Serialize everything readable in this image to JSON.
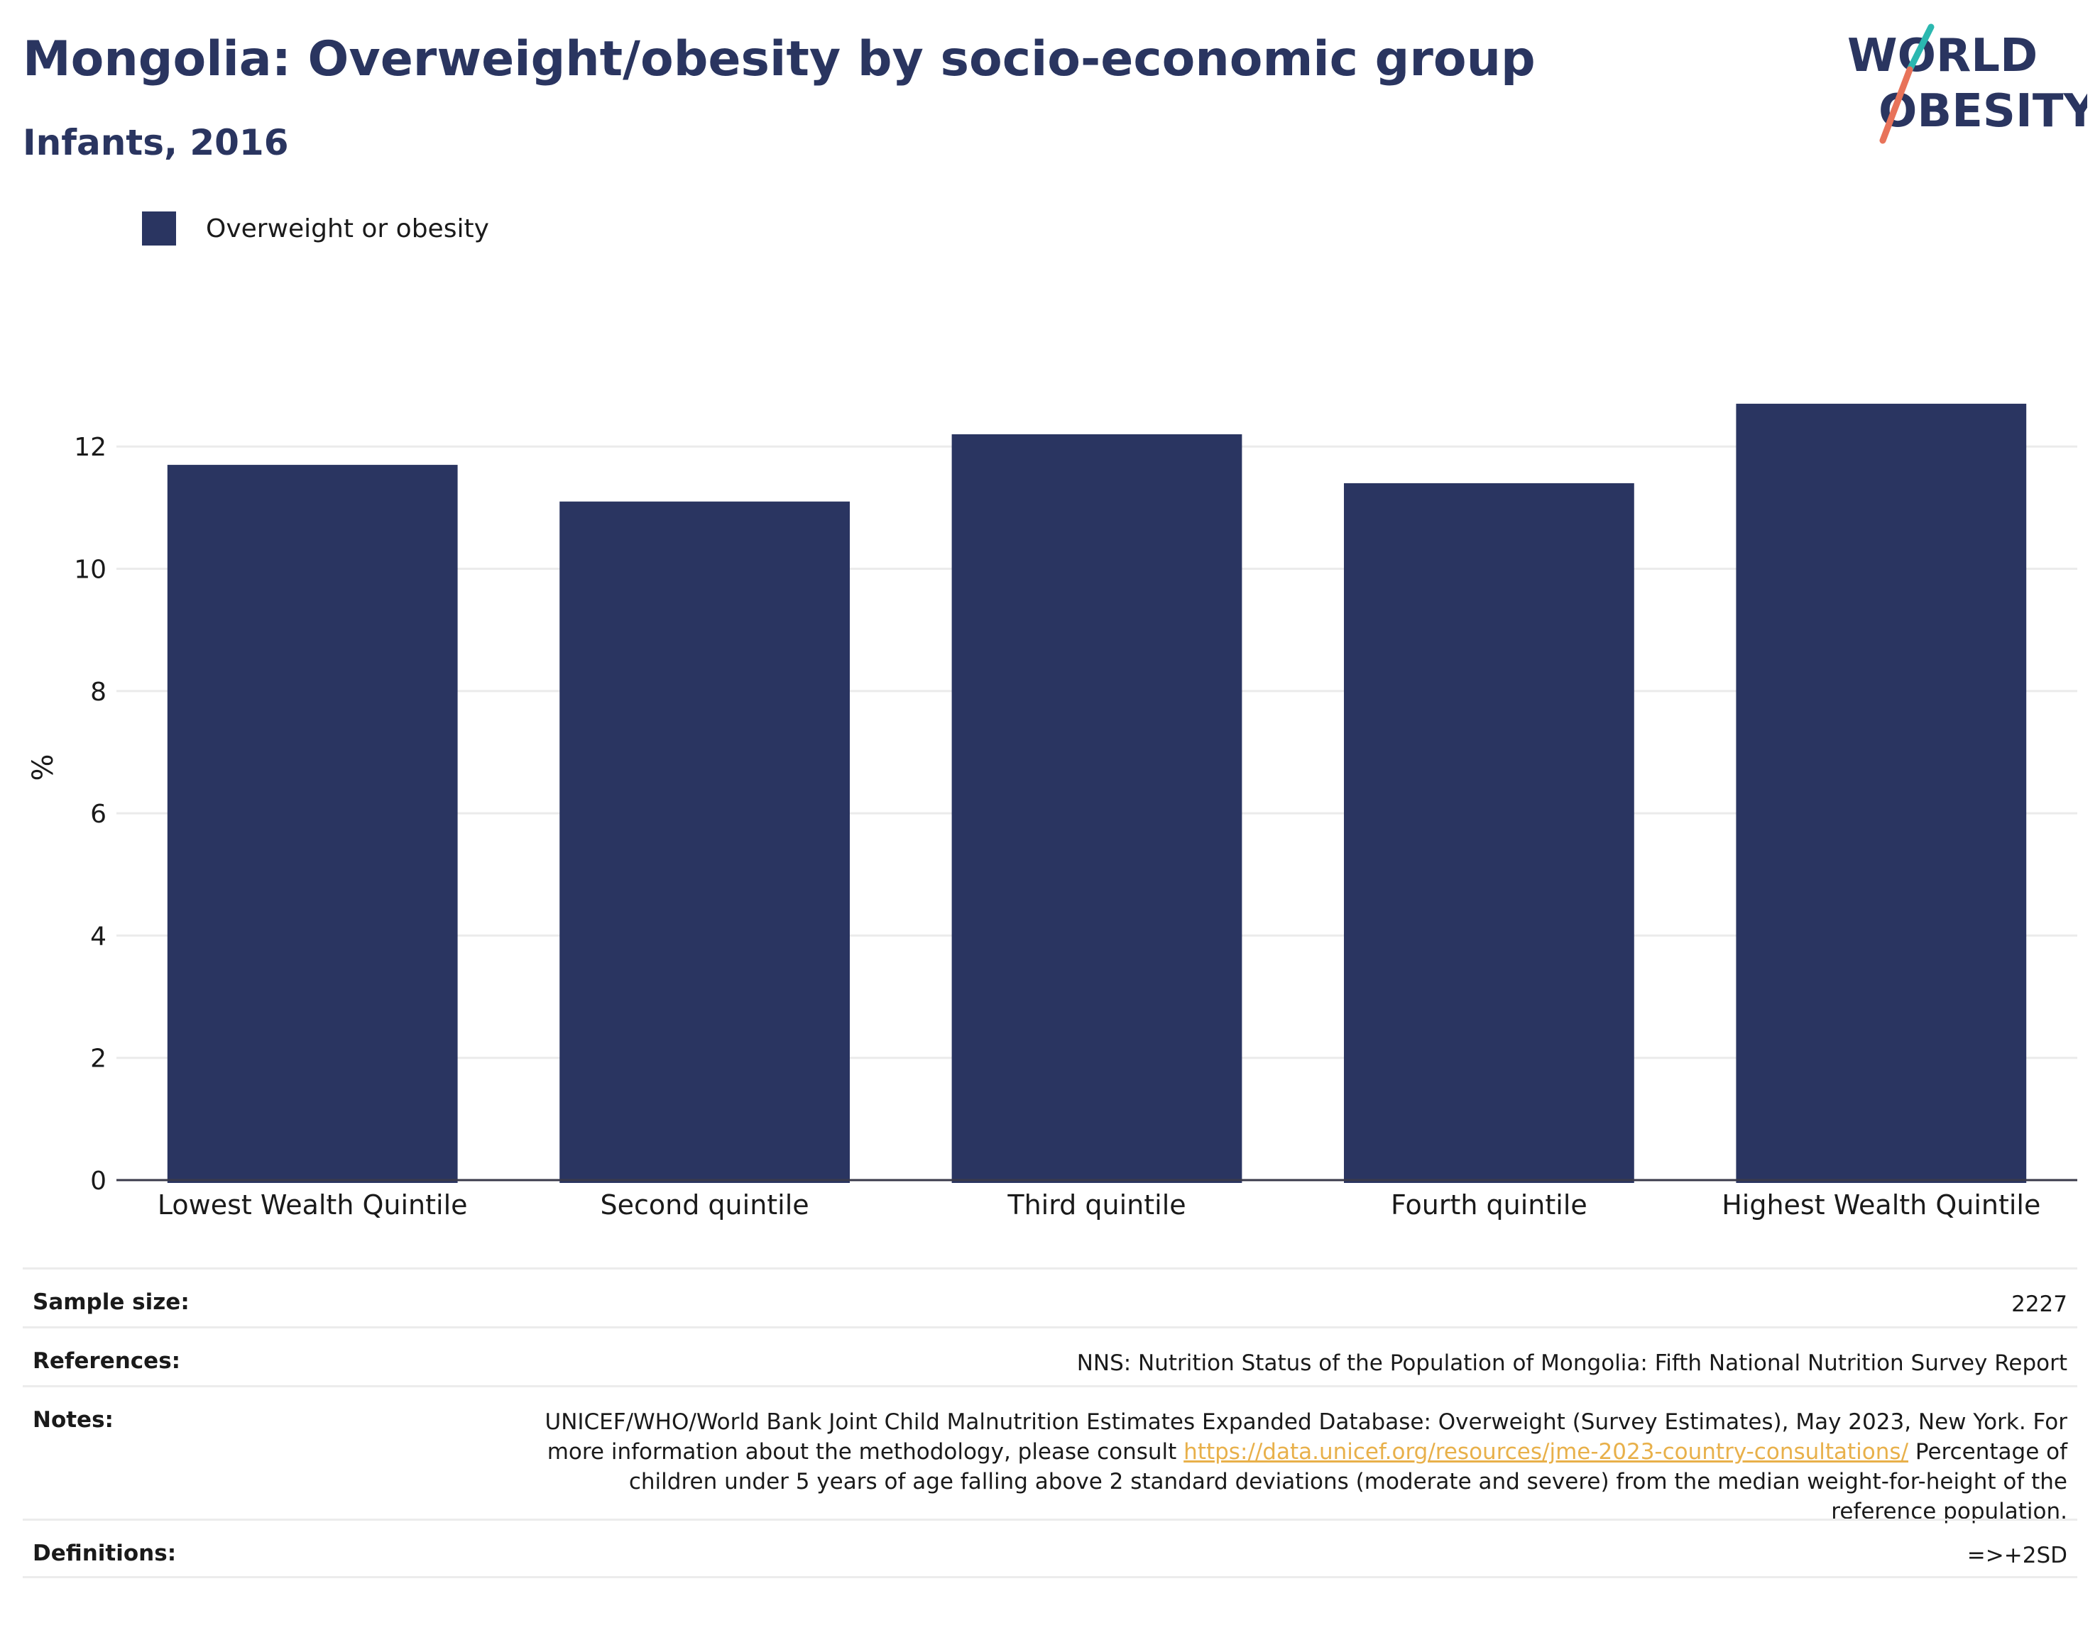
{
  "title": "Mongolia: Overweight/obesity by socio-economic group",
  "subtitle": "Infants, 2016",
  "logo": {
    "line1": "WORLD",
    "line2": "OBESITY",
    "accent_colors": [
      "#2bb8b0",
      "#e8735a"
    ]
  },
  "legend": {
    "label": "Overweight or obesity",
    "color": "#2a3561"
  },
  "chart_data": {
    "type": "bar",
    "categories": [
      "Lowest Wealth Quintile",
      "Second quintile",
      "Third quintile",
      "Fourth quintile",
      "Highest Wealth Quintile"
    ],
    "series": [
      {
        "name": "Overweight or obesity",
        "values": [
          11.7,
          11.1,
          12.2,
          11.4,
          12.7
        ],
        "color": "#2a3561"
      }
    ],
    "xlabel": "",
    "ylabel": "%",
    "ylim": [
      0,
      13.5
    ],
    "yticks": [
      0,
      2,
      4,
      6,
      8,
      10,
      12
    ],
    "grid": true,
    "legend_position": "top-left"
  },
  "info": {
    "sample_size": {
      "key": "Sample size:",
      "value": "2227"
    },
    "references": {
      "key": "References:",
      "value": "NNS: Nutrition Status of the Population of Mongolia: Fifth National Nutrition Survey Report"
    },
    "notes": {
      "key": "Notes:",
      "text1": "UNICEF/WHO/World Bank Joint Child Malnutrition Estimates Expanded Database: Overweight (Survey Estimates), May 2023, New York. For more information about the methodology, please consult",
      "link": "https://data.unicef.org/resources/jme-2023-country-consultations/",
      "text2": "Percentage of children under 5 years of age falling above 2 standard deviations (moderate and severe) from the median weight-for-height of the reference population."
    },
    "definitions": {
      "key": "Definitions:",
      "value": "=>+2SD"
    }
  }
}
